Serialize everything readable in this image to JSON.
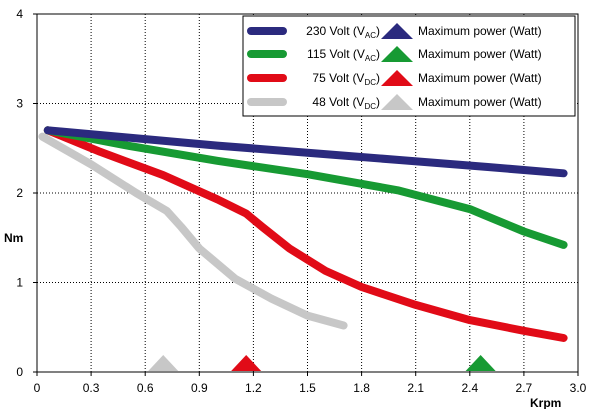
{
  "chart_data": {
    "type": "line",
    "xlabel": "Krpm",
    "ylabel": "Nm",
    "xlim": [
      0,
      3.0
    ],
    "ylim": [
      0,
      4
    ],
    "xticks": [
      "0",
      "0.3",
      "0.6",
      "0.9",
      "1.2",
      "1.5",
      "1.8",
      "2.1",
      "2.4",
      "2.7",
      "3.0"
    ],
    "yticks": [
      "0",
      "1",
      "2",
      "3",
      "4"
    ],
    "grid": true,
    "legend_position": "top-right",
    "marker_label": "Maximum power (Watt)",
    "series": [
      {
        "name": "230 Volt (VAC)",
        "name_main": "230 Volt (V",
        "name_sub": "AC",
        "name_close": ")",
        "color": "#2b2a7e",
        "x": [
          0.06,
          0.5,
          1.0,
          1.5,
          2.0,
          2.5,
          2.92
        ],
        "y": [
          2.7,
          2.62,
          2.53,
          2.45,
          2.37,
          2.29,
          2.22
        ],
        "max_power_rpm": null
      },
      {
        "name": "115 Volt (VAC)",
        "name_main": "115 Volt (V",
        "name_sub": "AC",
        "name_close": ")",
        "color": "#179a33",
        "x": [
          0.06,
          0.5,
          1.0,
          1.5,
          2.0,
          2.4,
          2.52,
          2.7,
          2.92
        ],
        "y": [
          2.7,
          2.53,
          2.36,
          2.21,
          2.03,
          1.82,
          1.72,
          1.57,
          1.42
        ],
        "max_power_rpm": 2.46
      },
      {
        "name": "75 Volt (VDC)",
        "name_main": "75 Volt (V",
        "name_sub": "DC",
        "name_close": ")",
        "color": "#e10b17",
        "x": [
          0.06,
          0.35,
          0.7,
          1.0,
          1.16,
          1.25,
          1.4,
          1.6,
          1.8,
          2.1,
          2.4,
          2.7,
          2.92
        ],
        "y": [
          2.7,
          2.46,
          2.2,
          1.93,
          1.77,
          1.62,
          1.38,
          1.13,
          0.95,
          0.75,
          0.58,
          0.46,
          0.38
        ],
        "max_power_rpm": 1.16
      },
      {
        "name": "48 Volt (VDC)",
        "name_main": "48 Volt (V",
        "name_sub": "DC",
        "name_close": ")",
        "color": "#c7c7c7",
        "x": [
          0.03,
          0.3,
          0.55,
          0.72,
          0.8,
          0.9,
          1.1,
          1.3,
          1.5,
          1.7
        ],
        "y": [
          2.63,
          2.32,
          2.0,
          1.8,
          1.62,
          1.38,
          1.04,
          0.82,
          0.63,
          0.52
        ],
        "max_power_rpm": 0.7
      }
    ]
  }
}
